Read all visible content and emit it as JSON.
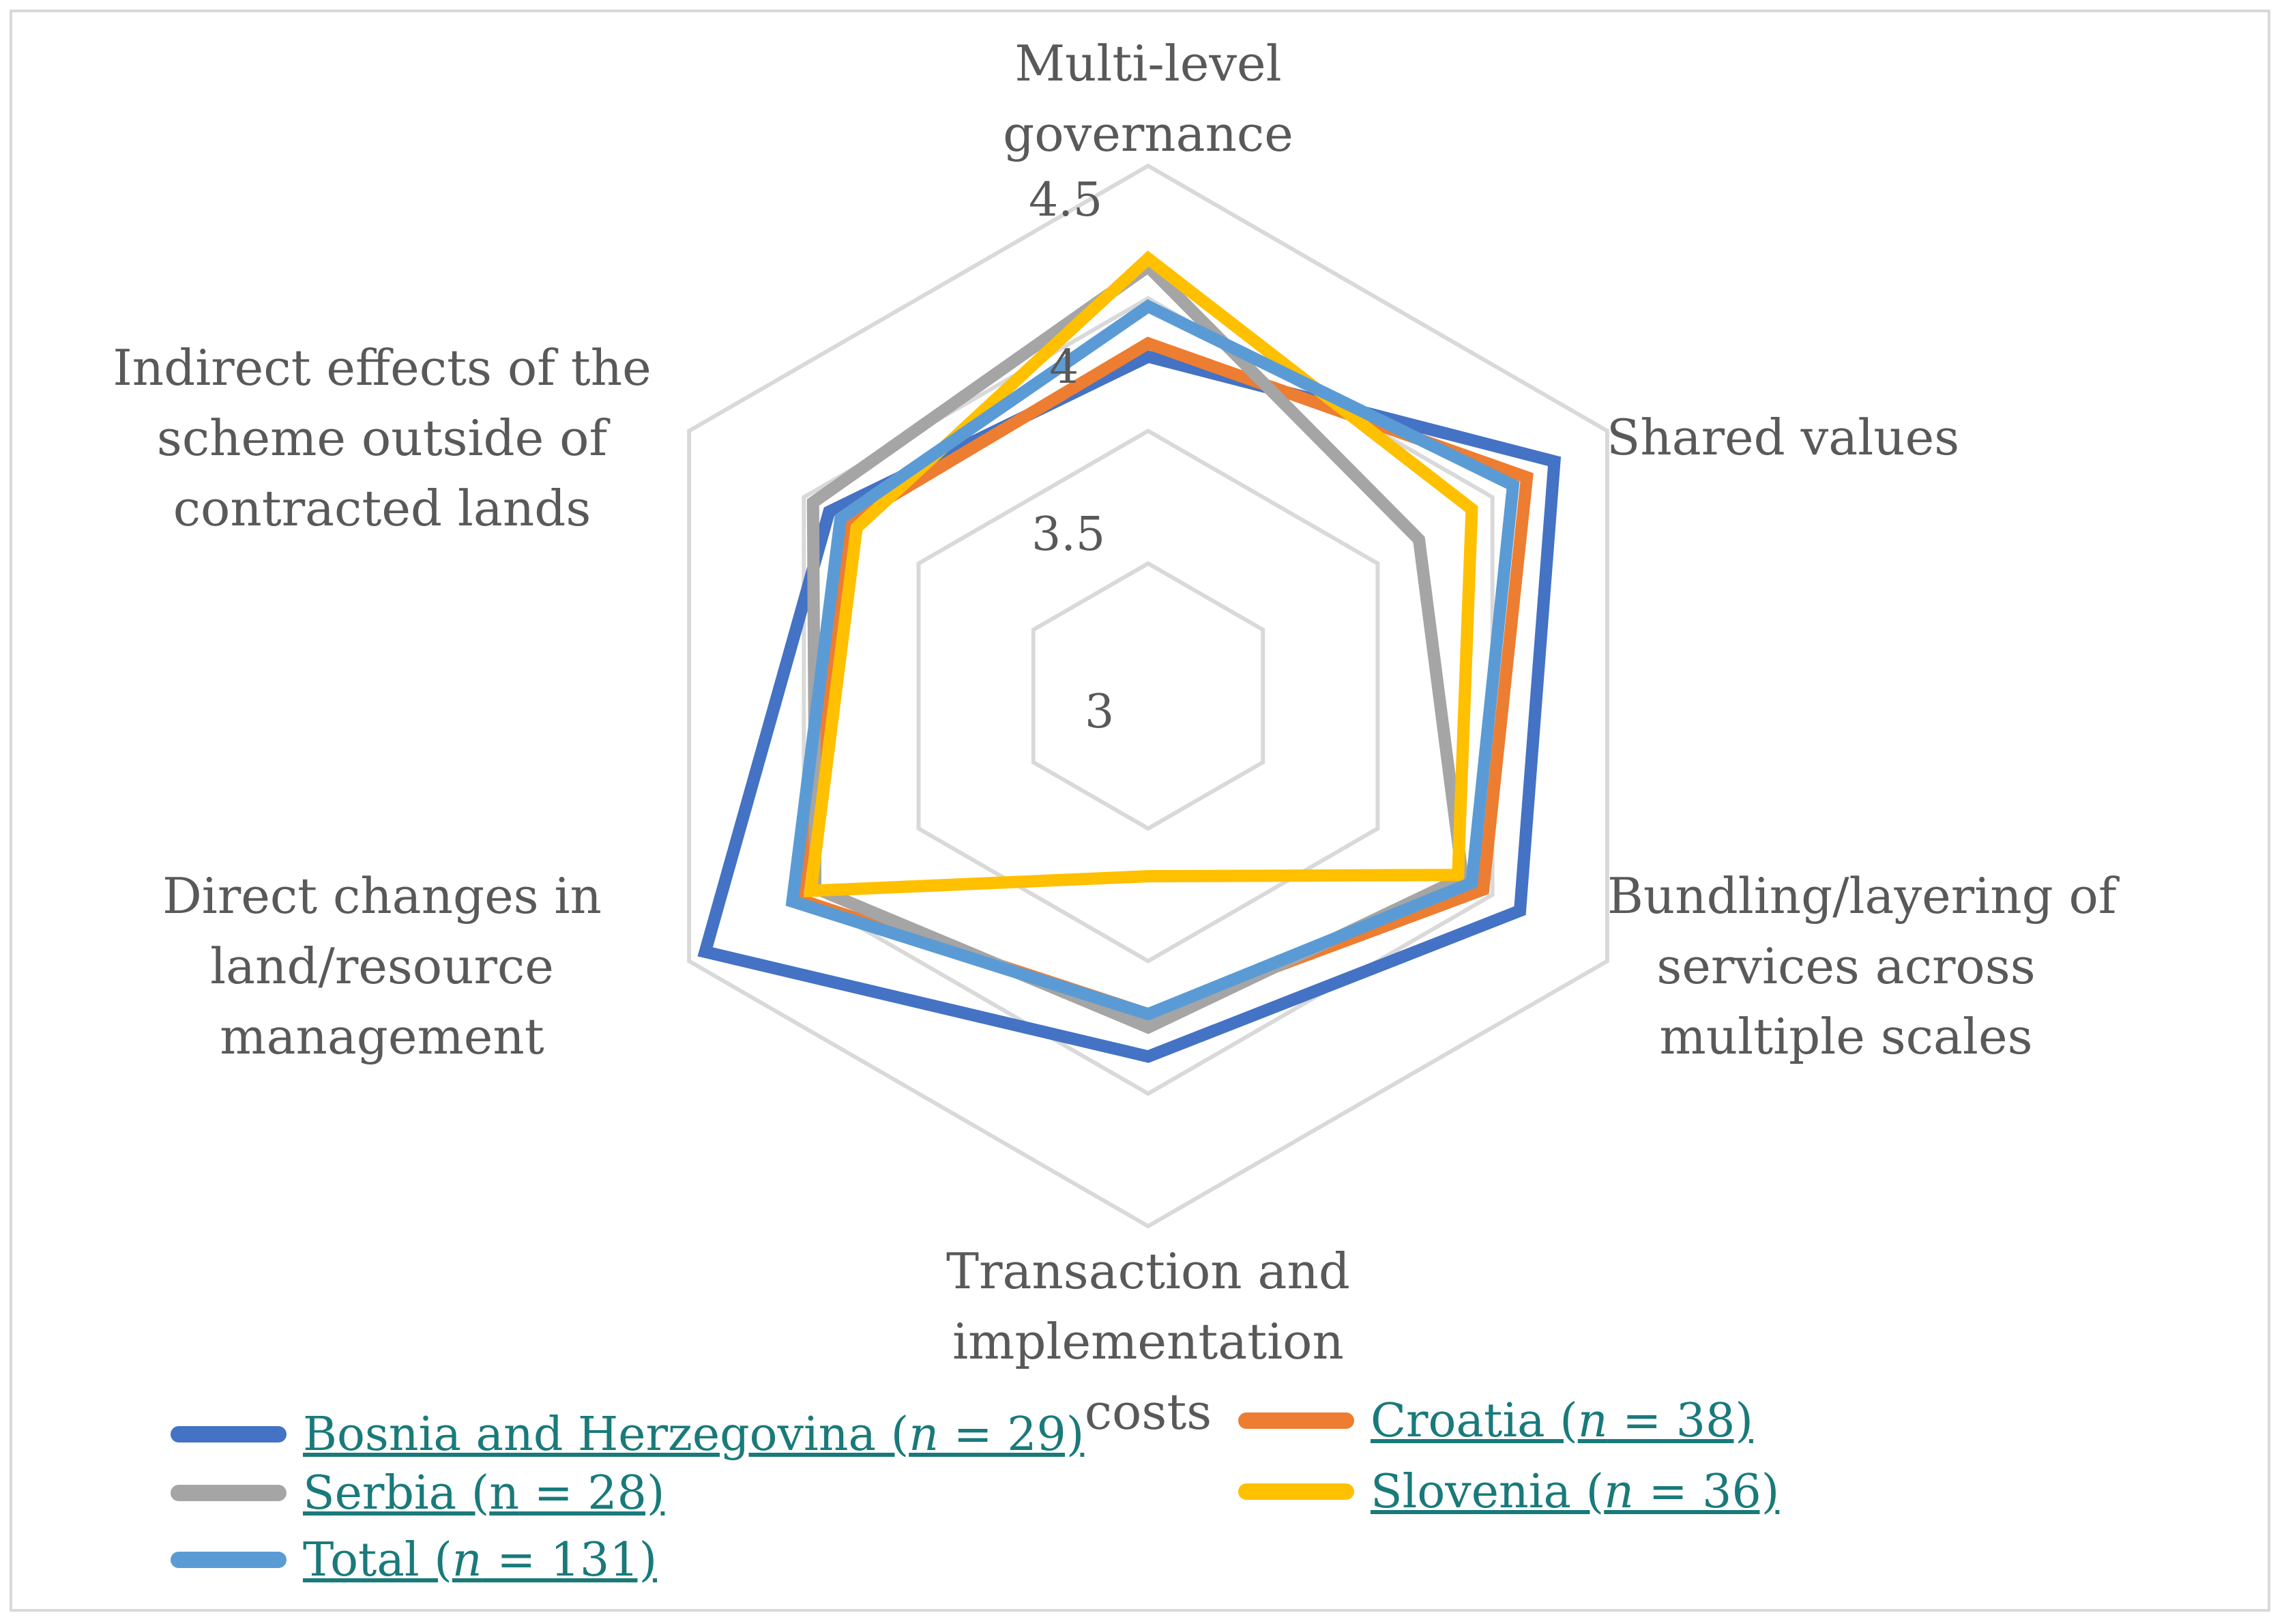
{
  "chart_data": {
    "type": "radar",
    "axes": [
      "Multi-level governance",
      "Shared values",
      "Bundling/layering of services across multiple scales",
      "Transaction and implementation costs",
      "Direct changes in land/resource management",
      "Indirect effects of the scheme outside of contracted lands"
    ],
    "axis_label_lines": [
      [
        "Multi-level",
        "governance"
      ],
      [
        "Shared values"
      ],
      [
        "Bundling/layering of",
        "services across",
        "multiple scales"
      ],
      [
        "Transaction and",
        "implementation",
        "costs"
      ],
      [
        "Direct changes in",
        "land/resource",
        "management"
      ],
      [
        "Indirect effects of the",
        "scheme outside of",
        "contracted lands"
      ]
    ],
    "rmin": 2.5,
    "rmax": 4.5,
    "ticks": [
      3,
      3.5,
      4,
      4.5
    ],
    "tick_labels": [
      "3",
      "3.5",
      "4",
      "4.5"
    ],
    "series": [
      {
        "name": "Bosnia and Herzegovina",
        "n": "29",
        "italic_n": true,
        "color": "#4472c4",
        "values": [
          3.78,
          4.27,
          4.12,
          3.86,
          4.43,
          3.89
        ]
      },
      {
        "name": "Croatia",
        "n": "38",
        "italic_n": true,
        "color": "#ed7d31",
        "values": [
          3.83,
          4.15,
          3.96,
          3.7,
          4.03,
          3.81
        ]
      },
      {
        "name": "Serbia",
        "n": "28",
        "italic_n": false,
        "color": "#a5a5a5",
        "values": [
          4.12,
          3.68,
          3.87,
          3.75,
          3.95,
          3.96
        ]
      },
      {
        "name": "Slovenia",
        "n": "36",
        "italic_n": true,
        "color": "#ffc000",
        "values": [
          4.15,
          3.91,
          3.85,
          3.18,
          3.97,
          3.77
        ]
      },
      {
        "name": "Total",
        "n": "131",
        "italic_n": true,
        "color": "#5b9bd5",
        "values": [
          3.97,
          4.09,
          3.91,
          3.7,
          4.05,
          3.84
        ]
      }
    ]
  }
}
